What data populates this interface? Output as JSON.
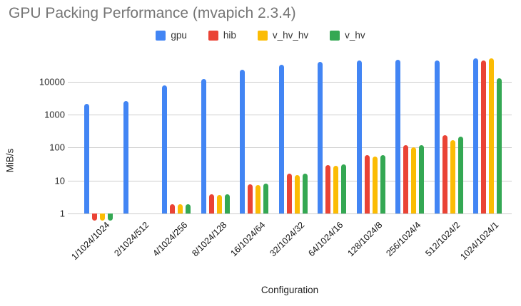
{
  "title": "GPU Packing Performance (mvapich 2.3.4)",
  "colors": {
    "gpu": "#4285F4",
    "hib": "#EA4335",
    "v_hv_hv": "#FBBC04",
    "v_hv": "#34A853",
    "title_text": "#757575",
    "gridline": "#cccccc",
    "axis_text": "#222222"
  },
  "chart_data": {
    "type": "bar",
    "title": "GPU Packing Performance (mvapich 2.3.4)",
    "xlabel": "Configuration",
    "ylabel": "MiB/s",
    "y_scale": "log",
    "y_ticks": [
      1,
      10,
      100,
      1000,
      10000
    ],
    "ylim": [
      0.5,
      60000
    ],
    "grid": true,
    "legend_position": "top",
    "categories": [
      "1/1024/1024",
      "2/1024/512",
      "4/1024/256",
      "8/1024/128",
      "16/1024/64",
      "32/1024/32",
      "64/1024/16",
      "128/1024/8",
      "256/1024/4",
      "512/1024/2",
      "1024/1024/1"
    ],
    "series": [
      {
        "name": "gpu",
        "color": "#4285F4",
        "values": [
          2100,
          2600,
          7800,
          12000,
          23000,
          33000,
          39000,
          43000,
          47000,
          44000,
          50000
        ]
      },
      {
        "name": "hib",
        "color": "#EA4335",
        "values": [
          0.6,
          null,
          1.9,
          3.8,
          7.7,
          16,
          29,
          58,
          120,
          235,
          43000
        ]
      },
      {
        "name": "v_hv_hv",
        "color": "#FBBC04",
        "values": [
          0.6,
          null,
          1.9,
          3.7,
          7.4,
          14.5,
          28,
          52,
          100,
          165,
          50000
        ]
      },
      {
        "name": "v_hv",
        "color": "#34A853",
        "values": [
          0.6,
          null,
          1.9,
          3.8,
          8,
          16,
          31,
          58,
          118,
          215,
          12500
        ]
      }
    ]
  }
}
